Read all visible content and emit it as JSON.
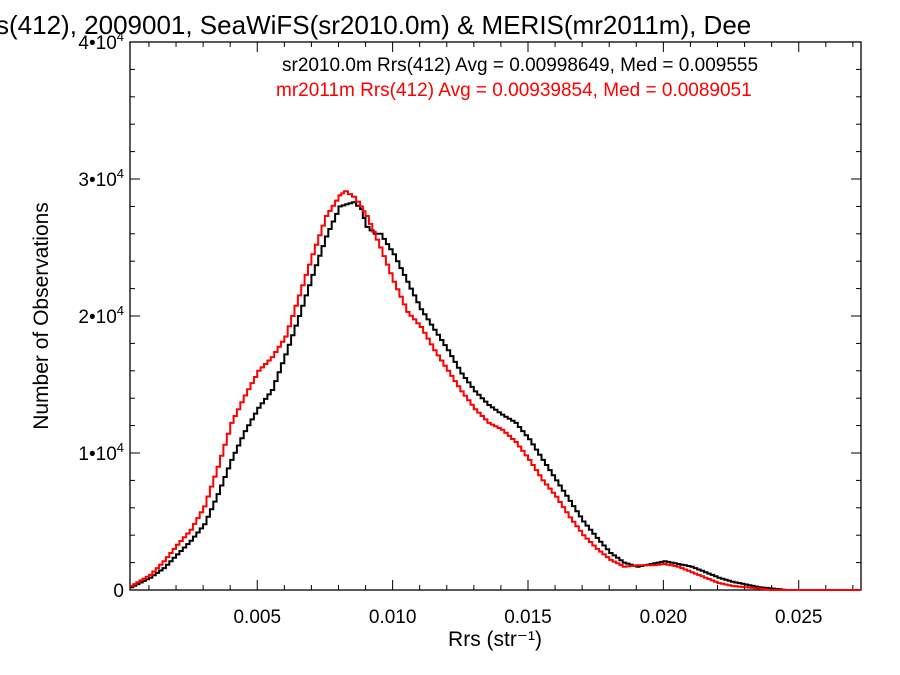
{
  "chart_data": {
    "type": "line",
    "title": "s(412), 2009001, SeaWiFS(sr2010.0m) & MERIS(mr2011m), Dee",
    "xlabel": "Rrs (str⁻¹)",
    "ylabel": "Number of Observations",
    "xlim": [
      0.0003,
      0.0273
    ],
    "ylim": [
      0,
      40000
    ],
    "x_ticks": [
      0.005,
      0.01,
      0.015,
      0.02,
      0.025
    ],
    "x_tick_labels": [
      "0.005",
      "0.010",
      "0.015",
      "0.020",
      "0.025"
    ],
    "y_ticks": [
      0,
      10000,
      20000,
      30000,
      40000
    ],
    "y_tick_labels": [
      {
        "base": "0",
        "exp": ""
      },
      {
        "base": "1•10",
        "exp": "4"
      },
      {
        "base": "2•10",
        "exp": "4"
      },
      {
        "base": "3•10",
        "exp": "4"
      },
      {
        "base": "4•10",
        "exp": "4"
      }
    ],
    "grid": false,
    "legend_position": "top-right",
    "legend": [
      {
        "text": "sr2010.0m Rrs(412) Avg = 0.00998649, Med = 0.009555",
        "color": "#000000"
      },
      {
        "text": "mr2011m Rrs(412) Avg = 0.00939854, Med = 0.0089051",
        "color": "#ff0000"
      }
    ],
    "series": [
      {
        "color": "#000000",
        "x": [
          0.0003,
          0.001,
          0.0015,
          0.002,
          0.0025,
          0.003,
          0.0035,
          0.004,
          0.0045,
          0.005,
          0.0055,
          0.006,
          0.0065,
          0.007,
          0.0075,
          0.008,
          0.0085,
          0.0088,
          0.009,
          0.0093,
          0.0095,
          0.01,
          0.0105,
          0.011,
          0.0115,
          0.012,
          0.0125,
          0.013,
          0.0135,
          0.014,
          0.0145,
          0.015,
          0.0155,
          0.016,
          0.0165,
          0.017,
          0.0175,
          0.018,
          0.0185,
          0.019,
          0.0195,
          0.02,
          0.0205,
          0.021,
          0.0215,
          0.022,
          0.0225,
          0.023,
          0.0235,
          0.024,
          0.0245,
          0.025,
          0.0273
        ],
        "y": [
          200,
          900,
          1600,
          2600,
          3600,
          4800,
          7000,
          9500,
          11600,
          13300,
          14600,
          17200,
          20000,
          23000,
          25800,
          28000,
          28300,
          27800,
          26500,
          26000,
          26000,
          24500,
          22500,
          20500,
          19000,
          17500,
          15800,
          14500,
          13500,
          12800,
          12200,
          11000,
          9500,
          8000,
          6500,
          5000,
          3800,
          2700,
          2000,
          1700,
          1900,
          2100,
          1900,
          1700,
          1300,
          900,
          600,
          400,
          200,
          100,
          0,
          0,
          0
        ]
      },
      {
        "color": "#ff0000",
        "x": [
          0.0003,
          0.001,
          0.0015,
          0.002,
          0.0025,
          0.003,
          0.0035,
          0.004,
          0.0045,
          0.005,
          0.0055,
          0.006,
          0.0065,
          0.007,
          0.0075,
          0.008,
          0.0082,
          0.0085,
          0.0088,
          0.009,
          0.0095,
          0.01,
          0.0105,
          0.011,
          0.0115,
          0.012,
          0.0125,
          0.013,
          0.0135,
          0.014,
          0.0145,
          0.015,
          0.0155,
          0.016,
          0.0165,
          0.017,
          0.0175,
          0.018,
          0.0185,
          0.019,
          0.0195,
          0.02,
          0.0205,
          0.021,
          0.0215,
          0.022,
          0.0225,
          0.023,
          0.0235,
          0.024,
          0.0245,
          0.025,
          0.0273
        ],
        "y": [
          300,
          1100,
          2100,
          3300,
          4400,
          6100,
          9000,
          12200,
          14200,
          16000,
          17000,
          18500,
          21500,
          24500,
          27300,
          28800,
          29100,
          28700,
          28000,
          27300,
          25000,
          22500,
          20300,
          19200,
          17500,
          16000,
          14500,
          13200,
          12200,
          11700,
          10800,
          9500,
          8000,
          6800,
          5300,
          4000,
          3000,
          2200,
          1700,
          1800,
          1800,
          1900,
          1700,
          1300,
          900,
          500,
          300,
          200,
          100,
          0,
          0,
          0,
          0
        ]
      }
    ]
  }
}
